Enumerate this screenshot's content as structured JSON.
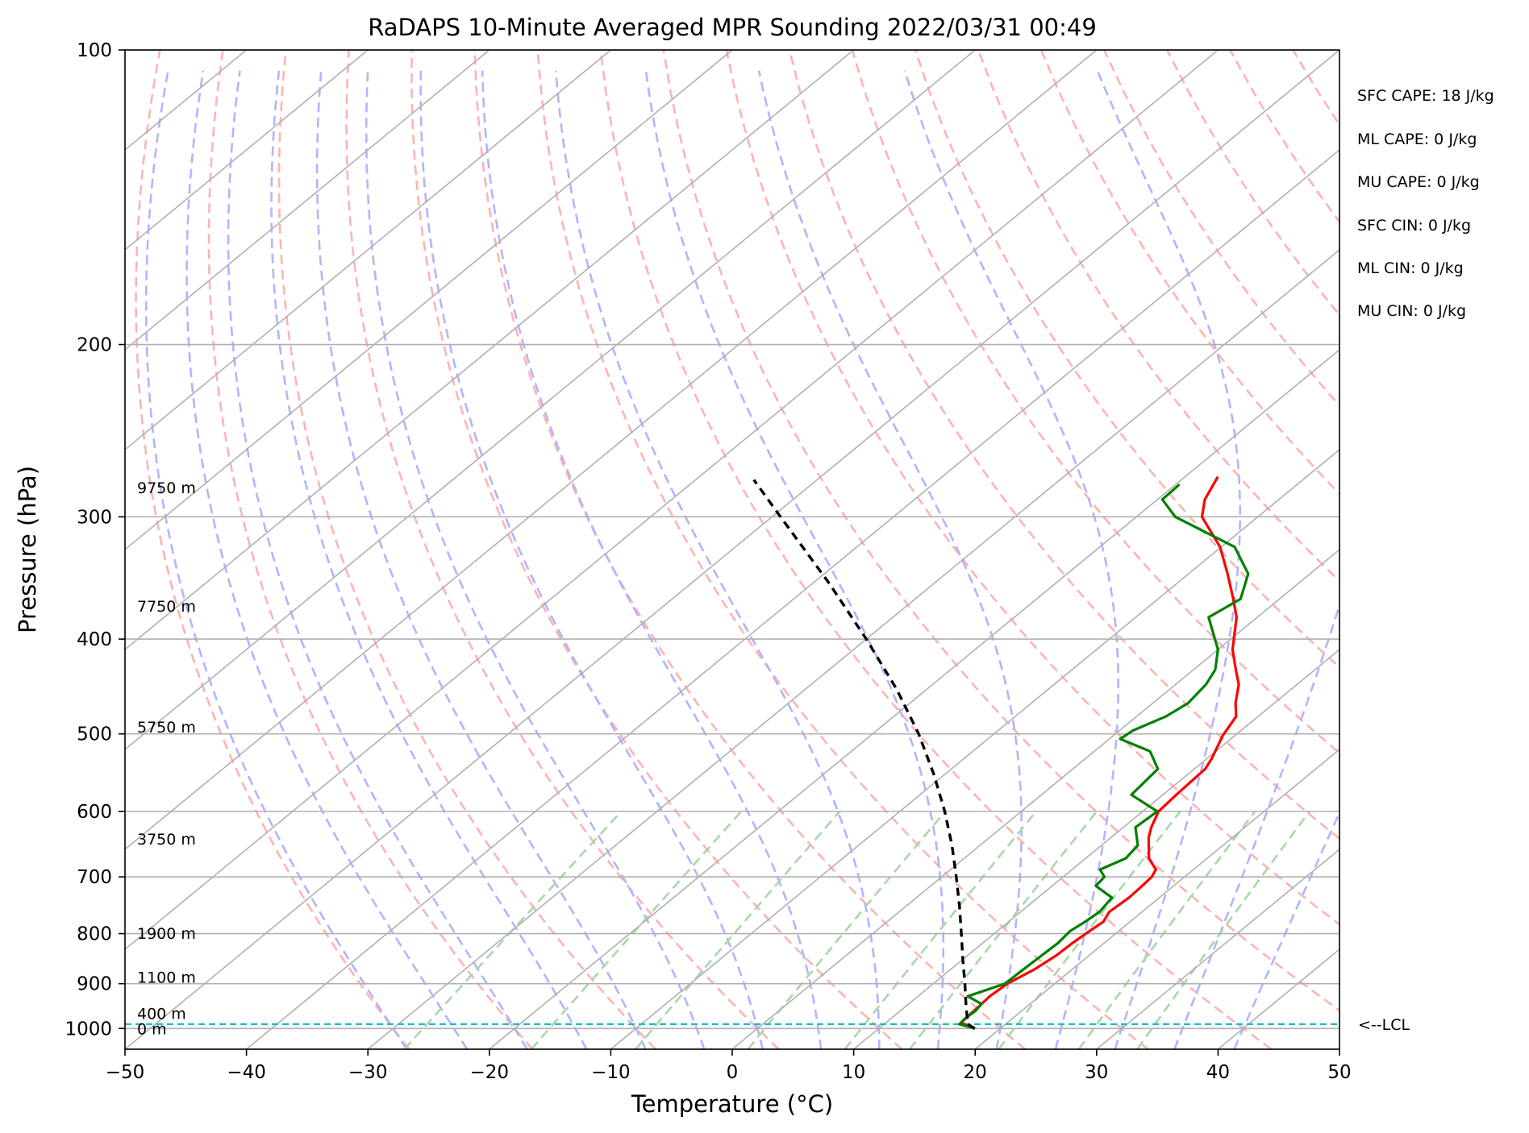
{
  "chart_data": {
    "type": "line",
    "subtype": "skew-t log-p sounding",
    "title": "RaDAPS 10-Minute Averaged MPR Sounding 2022/03/31 00:49",
    "xlabel": "Temperature (°C)",
    "ylabel": "Pressure (hPa)",
    "xlim": [
      -50,
      50
    ],
    "ylim": [
      1050,
      100
    ],
    "y_scale": "log",
    "grid": true,
    "x_ticks": [
      "−50",
      "−40",
      "−30",
      "−20",
      "−10",
      "0",
      "10",
      "20",
      "30",
      "40",
      "50"
    ],
    "x_tick_values": [
      -50,
      -40,
      -30,
      -20,
      -10,
      0,
      10,
      20,
      30,
      40,
      50
    ],
    "y_ticks": [
      "100",
      "200",
      "300",
      "400",
      "500",
      "600",
      "700",
      "800",
      "900",
      "1000"
    ],
    "y_tick_values": [
      100,
      200,
      300,
      400,
      500,
      600,
      700,
      800,
      900,
      1000
    ],
    "height_labels": [
      {
        "text": "9750 m",
        "p": 280
      },
      {
        "text": "7750 m",
        "p": 370
      },
      {
        "text": "5750 m",
        "p": 492
      },
      {
        "text": "3750 m",
        "p": 640
      },
      {
        "text": "1900 m",
        "p": 799
      },
      {
        "text": "1100 m",
        "p": 886
      },
      {
        "text": "400 m",
        "p": 965
      },
      {
        "text": "0 m",
        "p": 1000
      }
    ],
    "lcl": {
      "p": 990,
      "label": "<--LCL"
    },
    "series": [
      {
        "color": "#ff0000",
        "p": [
          1000,
          987,
          969,
          944,
          927,
          900,
          870,
          842,
          817,
          795,
          778,
          760,
          735,
          715,
          700,
          688,
          670,
          638,
          623,
          600,
          577,
          543,
          530,
          502,
          480,
          465,
          445,
          430,
          410,
          380,
          364,
          343,
          322,
          300,
          288,
          273
        ],
        "t": [
          17.9,
          16.2,
          16.1,
          16.0,
          15.9,
          16.1,
          16.9,
          17.3,
          17.4,
          17.6,
          17.8,
          17.3,
          17.5,
          17.4,
          17.3,
          16.9,
          15.2,
          13.1,
          12.3,
          11.3,
          11.1,
          10.9,
          10.4,
          9.0,
          8.2,
          6.8,
          5.2,
          3.5,
          1.2,
          -1.7,
          -3.8,
          -6.8,
          -10.1,
          -14.6,
          -16.1,
          -17.3
        ]
      },
      {
        "color": "#008000",
        "p": [
          1000,
          990,
          977,
          960,
          944,
          927,
          900,
          869,
          841,
          818,
          795,
          778,
          760,
          735,
          715,
          700,
          688,
          670,
          650,
          623,
          600,
          577,
          543,
          521,
          506,
          496,
          480,
          465,
          445,
          430,
          410,
          380,
          364,
          343,
          322,
          300,
          288,
          278
        ],
        "t": [
          17.9,
          16.2,
          16.1,
          16.2,
          16.0,
          14.1,
          15.9,
          16.0,
          16.1,
          16.2,
          16.0,
          16.3,
          16.5,
          16.1,
          13.6,
          13.4,
          12.3,
          13.3,
          13.0,
          11.0,
          11.2,
          7.4,
          7.0,
          4.6,
          0.9,
          1.1,
          2.4,
          2.9,
          2.5,
          1.8,
          0.0,
          -4.0,
          -3.2,
          -5.1,
          -8.9,
          -16.8,
          -19.6,
          -19.7
        ]
      },
      {
        "color": "#000000",
        "dashed": true,
        "p": [
          1000,
          990,
          950,
          900,
          850,
          800,
          750,
          700,
          650,
          600,
          550,
          500,
          450,
          400,
          350,
          300,
          275
        ],
        "t": [
          17.9,
          16.9,
          15.0,
          12.6,
          10.0,
          7.3,
          4.4,
          1.2,
          -2.3,
          -6.3,
          -10.9,
          -16.2,
          -22.5,
          -30.0,
          -38.8,
          -49.3,
          -55.2
        ]
      }
    ]
  },
  "side_panel": {
    "sfc_cape": "SFC CAPE: 18 J/kg",
    "ml_cape": "ML CAPE: 0 J/kg",
    "mu_cape": "MU CAPE: 0 J/kg",
    "sfc_cin": "SFC CIN: 0 J/kg",
    "ml_cin": "ML CIN: 0 J/kg",
    "mu_cin": "MU CIN: 0 J/kg"
  },
  "colors": {
    "isobar_isotherm": "#b0b0b0",
    "dry_adiabat": "#ffb3b3",
    "moist_adiabat": "#b3b3ff",
    "mixing_ratio": "#a8d8a8",
    "lcl_line": "#17becf"
  }
}
